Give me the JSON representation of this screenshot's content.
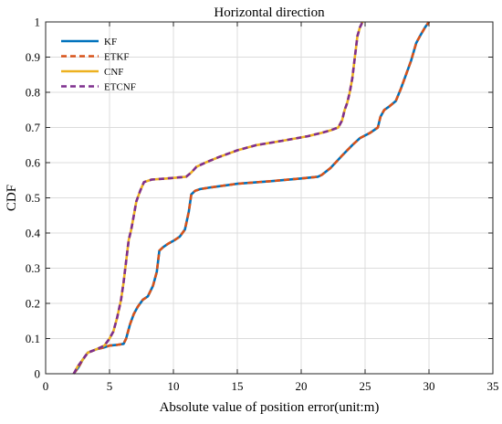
{
  "chart_data": {
    "type": "line",
    "title": "Horizontal direction",
    "xlabel": "Absolute value of position error(unit:m)",
    "ylabel": "CDF",
    "xlim": [
      0,
      35
    ],
    "ylim": [
      0,
      1
    ],
    "xticks": [
      0,
      5,
      10,
      15,
      20,
      25,
      30,
      35
    ],
    "yticks": [
      0,
      0.1,
      0.2,
      0.3,
      0.4,
      0.5,
      0.6,
      0.7,
      0.8,
      0.9,
      1
    ],
    "xtick_labels": [
      "0",
      "5",
      "10",
      "15",
      "20",
      "25",
      "30",
      "35"
    ],
    "ytick_labels": [
      "0",
      "0.1",
      "0.2",
      "0.3",
      "0.4",
      "0.5",
      "0.6",
      "0.7",
      "0.8",
      "0.9",
      "1"
    ],
    "grid": true,
    "legend_position": "top-left",
    "series": [
      {
        "name": "KF",
        "color": "#0072BD",
        "dash": "solid",
        "x": [
          2.2,
          2.6,
          2.9,
          3.3,
          4.0,
          4.6,
          5.0,
          5.6,
          6.1,
          6.3,
          6.6,
          6.9,
          7.2,
          7.6,
          8.0,
          8.4,
          8.7,
          8.9,
          9.2,
          9.6,
          10.1,
          10.5,
          10.9,
          11.2,
          11.4,
          11.7,
          12.1,
          13.0,
          15.0,
          17.5,
          20.0,
          21.3,
          21.6,
          22.3,
          23.2,
          24.0,
          24.6,
          25.4,
          26.0,
          26.2,
          26.5,
          26.9,
          27.4,
          27.8,
          28.2,
          28.6,
          29.0,
          29.3,
          29.7,
          30.0
        ],
        "y": [
          0.0,
          0.02,
          0.04,
          0.06,
          0.07,
          0.075,
          0.08,
          0.082,
          0.085,
          0.1,
          0.14,
          0.17,
          0.19,
          0.21,
          0.22,
          0.25,
          0.29,
          0.35,
          0.36,
          0.37,
          0.38,
          0.39,
          0.41,
          0.46,
          0.51,
          0.52,
          0.525,
          0.53,
          0.54,
          0.547,
          0.555,
          0.56,
          0.565,
          0.585,
          0.62,
          0.65,
          0.67,
          0.685,
          0.7,
          0.73,
          0.75,
          0.76,
          0.775,
          0.81,
          0.85,
          0.89,
          0.94,
          0.96,
          0.985,
          1.0
        ]
      },
      {
        "name": "ETKF",
        "color": "#D95319",
        "dash": "dashed",
        "x": [
          2.2,
          2.6,
          2.9,
          3.3,
          4.0,
          4.6,
          5.0,
          5.6,
          6.1,
          6.3,
          6.6,
          6.9,
          7.2,
          7.6,
          8.0,
          8.4,
          8.7,
          8.9,
          9.2,
          9.6,
          10.1,
          10.5,
          10.9,
          11.2,
          11.4,
          11.7,
          12.1,
          13.0,
          15.0,
          17.5,
          20.0,
          21.3,
          21.6,
          22.3,
          23.2,
          24.0,
          24.6,
          25.4,
          26.0,
          26.2,
          26.5,
          26.9,
          27.4,
          27.8,
          28.2,
          28.6,
          29.0,
          29.3,
          29.7,
          30.0
        ],
        "y": [
          0.0,
          0.02,
          0.04,
          0.06,
          0.07,
          0.075,
          0.08,
          0.082,
          0.085,
          0.1,
          0.14,
          0.17,
          0.19,
          0.21,
          0.22,
          0.25,
          0.29,
          0.35,
          0.36,
          0.37,
          0.38,
          0.39,
          0.41,
          0.46,
          0.51,
          0.52,
          0.525,
          0.53,
          0.54,
          0.547,
          0.555,
          0.56,
          0.565,
          0.585,
          0.62,
          0.65,
          0.67,
          0.685,
          0.7,
          0.73,
          0.75,
          0.76,
          0.775,
          0.81,
          0.85,
          0.89,
          0.94,
          0.96,
          0.985,
          1.0
        ]
      },
      {
        "name": "CNF",
        "color": "#EDB120",
        "dash": "solid",
        "x": [
          2.2,
          2.5,
          2.9,
          3.3,
          4.0,
          4.6,
          5.0,
          5.3,
          5.6,
          5.9,
          6.1,
          6.3,
          6.5,
          6.7,
          6.9,
          7.1,
          7.4,
          7.7,
          8.3,
          9.5,
          11.0,
          11.4,
          11.8,
          12.5,
          13.5,
          15.0,
          16.5,
          18.5,
          20.5,
          21.5,
          22.3,
          22.9,
          23.2,
          23.4,
          23.6,
          23.8,
          24.0,
          24.2,
          24.4,
          24.6,
          24.8
        ],
        "y": [
          0.0,
          0.02,
          0.04,
          0.06,
          0.07,
          0.08,
          0.1,
          0.12,
          0.16,
          0.21,
          0.26,
          0.32,
          0.38,
          0.41,
          0.45,
          0.49,
          0.52,
          0.545,
          0.552,
          0.555,
          0.56,
          0.572,
          0.588,
          0.6,
          0.615,
          0.635,
          0.65,
          0.662,
          0.675,
          0.684,
          0.692,
          0.7,
          0.72,
          0.75,
          0.77,
          0.8,
          0.84,
          0.9,
          0.96,
          0.985,
          1.0
        ]
      },
      {
        "name": "ETCNF",
        "color": "#7E2F8E",
        "dash": "dashed",
        "x": [
          2.2,
          2.5,
          2.9,
          3.3,
          4.0,
          4.6,
          5.0,
          5.3,
          5.6,
          5.9,
          6.1,
          6.3,
          6.5,
          6.7,
          6.9,
          7.1,
          7.4,
          7.7,
          8.3,
          9.5,
          11.0,
          11.4,
          11.8,
          12.5,
          13.5,
          15.0,
          16.5,
          18.5,
          20.5,
          21.5,
          22.3,
          22.9,
          23.2,
          23.4,
          23.6,
          23.8,
          24.0,
          24.2,
          24.4,
          24.6,
          24.8
        ],
        "y": [
          0.0,
          0.02,
          0.04,
          0.06,
          0.07,
          0.08,
          0.1,
          0.12,
          0.16,
          0.21,
          0.26,
          0.32,
          0.38,
          0.41,
          0.45,
          0.49,
          0.52,
          0.545,
          0.552,
          0.555,
          0.56,
          0.572,
          0.588,
          0.6,
          0.615,
          0.635,
          0.65,
          0.662,
          0.675,
          0.684,
          0.692,
          0.7,
          0.72,
          0.75,
          0.77,
          0.8,
          0.84,
          0.9,
          0.96,
          0.985,
          1.0
        ]
      }
    ]
  }
}
